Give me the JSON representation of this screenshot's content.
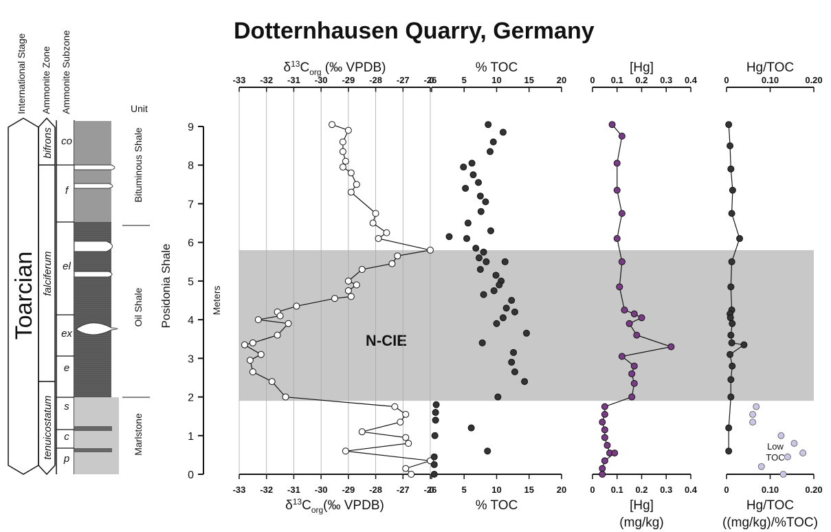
{
  "figure": {
    "title": "Dotternhausen Quarry, Germany",
    "column_headers": [
      "International Stage",
      "Ammonite Zone",
      "Ammonite Subzone"
    ],
    "unit_header": "Unit",
    "stage": "Toarcian",
    "zones": [
      "bifrons",
      "falciferum",
      "tenuicostatum"
    ],
    "subzones": [
      "co",
      "f",
      "el",
      "ex",
      "e",
      "s",
      "c",
      "p"
    ],
    "units": [
      "Bituminous Shale",
      "Oil Shale",
      "Marlstone"
    ],
    "formation_label": "Posidonia Shale",
    "meters_label": "Meters",
    "band_label": "N-CIE",
    "low_toc_label": [
      "Low",
      "TOC"
    ]
  },
  "chart_data": [
    {
      "type": "line",
      "title": "δ13Corg (‰ VPDB)",
      "top_label": [
        "δ",
        "13",
        "C",
        "org",
        " (‰ VPDB)"
      ],
      "bottom_label": [
        "δ",
        "13",
        "C",
        "org",
        "(‰ VPDB)"
      ],
      "xlim": [
        -33,
        -26
      ],
      "xticks": [
        "-33",
        "-32",
        "-31",
        "-30",
        "-29",
        "-28",
        "-27",
        "-26"
      ],
      "grid": true,
      "ylabel": "Meters",
      "ylim": [
        0,
        9
      ],
      "yticks": [
        "0",
        "1",
        "2",
        "3",
        "4",
        "5",
        "6",
        "7",
        "8",
        "9"
      ],
      "marker_color": "#ffffff",
      "series": [
        {
          "x": [
            -29.6,
            -29.0,
            -29.2,
            -29.2,
            -29.1,
            -29.2,
            -28.9,
            -28.7,
            -28.9,
            -28.0,
            -28.1,
            -27.6,
            -27.9,
            -26.0,
            -27.2,
            -27.4,
            -28.5,
            -29.0,
            -28.7,
            -29.0,
            -28.9,
            -29.5,
            -30.9,
            -31.6,
            -31.5,
            -32.3,
            -31.2,
            -31.6,
            -32.5,
            -32.8,
            -32.2,
            -32.6,
            -32.5,
            -31.8,
            -31.3,
            -27.3,
            -26.9,
            -27.1,
            -28.5,
            -26.9,
            -26.8,
            -29.1,
            -26.0,
            -26.9,
            -26.7
          ],
          "y": [
            9.05,
            8.9,
            8.6,
            8.35,
            8.1,
            7.95,
            7.8,
            7.5,
            7.3,
            6.75,
            6.5,
            6.25,
            6.1,
            5.8,
            5.65,
            5.45,
            5.3,
            5.0,
            4.9,
            4.75,
            4.6,
            4.55,
            4.35,
            4.2,
            4.1,
            4.0,
            3.9,
            3.6,
            3.4,
            3.35,
            3.1,
            2.95,
            2.65,
            2.4,
            2.0,
            1.75,
            1.55,
            1.35,
            1.1,
            0.95,
            0.8,
            0.6,
            0.35,
            0.15,
            0.0
          ]
        }
      ]
    },
    {
      "type": "scatter",
      "title": "% TOC",
      "xlim": [
        0,
        20
      ],
      "xticks": [
        "0",
        "5",
        "10",
        "15",
        "20"
      ],
      "marker_color": "#333333",
      "series": [
        {
          "x": [
            8.7,
            11.0,
            9.5,
            9.0,
            6.2,
            4.9,
            6.4,
            7.2,
            5.2,
            7.5,
            8.3,
            7.6,
            5.6,
            9.1,
            2.7,
            5.4,
            6.8,
            8.0,
            7.3,
            8.4,
            11.3,
            7.5,
            9.9,
            10.7,
            10.4,
            9.6,
            8.0,
            12.3,
            11.5,
            12.8,
            11.0,
            10.0,
            14.6,
            7.8,
            12.6,
            12.3,
            12.8,
            14.3,
            10.2,
            0.7,
            0.6,
            0.6,
            6.1,
            0.5,
            8.6,
            0.4,
            0.4,
            0.4
          ],
          "y": [
            9.05,
            8.85,
            8.6,
            8.35,
            8.05,
            7.95,
            7.75,
            7.55,
            7.4,
            7.2,
            7.05,
            6.8,
            6.5,
            6.3,
            6.15,
            6.1,
            5.85,
            5.75,
            5.6,
            5.5,
            5.5,
            5.3,
            5.15,
            5.0,
            4.9,
            4.75,
            4.65,
            4.5,
            4.3,
            4.2,
            4.05,
            3.9,
            3.65,
            3.4,
            3.15,
            2.9,
            2.65,
            2.4,
            2.0,
            1.8,
            1.6,
            1.4,
            1.2,
            1.0,
            0.6,
            0.45,
            0.25,
            0.0
          ]
        }
      ],
      "bottom_label": "% TOC"
    },
    {
      "type": "line",
      "title": "[Hg]",
      "xlim": [
        0,
        0.4
      ],
      "xticks": [
        "0",
        "0.1",
        "0.2",
        "0.3",
        "0.4"
      ],
      "marker_color": "#7a3b86",
      "series": [
        {
          "x": [
            0.08,
            0.12,
            0.1,
            0.1,
            0.12,
            0.1,
            0.12,
            0.11,
            0.13,
            0.17,
            0.2,
            0.15,
            0.18,
            0.32,
            0.12,
            0.17,
            0.16,
            0.17,
            0.16,
            0.05,
            0.05,
            0.04,
            0.05,
            0.05,
            0.06,
            0.07,
            0.09,
            0.05,
            0.04,
            0.04
          ],
          "y": [
            9.05,
            8.75,
            8.05,
            7.35,
            6.75,
            6.1,
            5.5,
            4.85,
            4.25,
            4.15,
            4.05,
            3.9,
            3.6,
            3.3,
            3.05,
            2.8,
            2.6,
            2.35,
            2.0,
            1.75,
            1.55,
            1.35,
            1.15,
            0.95,
            0.75,
            0.55,
            0.55,
            0.35,
            0.15,
            0.0
          ]
        }
      ],
      "bottom_label": [
        "[Hg]",
        "(mg/kg)"
      ]
    },
    {
      "type": "line",
      "title": "Hg/TOC",
      "xlim": [
        0,
        0.2
      ],
      "xticks": [
        "0",
        "0.10",
        "0.20"
      ],
      "marker_color": "#333333",
      "series": [
        {
          "x": [
            0.005,
            0.008,
            0.01,
            0.014,
            0.012,
            0.03,
            0.012,
            0.01,
            0.012,
            0.008,
            0.009,
            0.013,
            0.01,
            0.012,
            0.04,
            0.008,
            0.013,
            0.01,
            0.01,
            0.005,
            0.005
          ],
          "y": [
            9.05,
            8.5,
            7.9,
            7.35,
            6.75,
            6.1,
            5.5,
            4.85,
            4.25,
            4.15,
            4.05,
            3.9,
            3.6,
            3.4,
            3.35,
            3.1,
            2.8,
            2.45,
            2.0,
            1.2,
            0.6
          ]
        }
      ],
      "low_toc_points": {
        "color": "#c9c6e6",
        "x": [
          0.068,
          0.06,
          0.06,
          0.125,
          0.155,
          0.175,
          0.14,
          0.08,
          0.13
        ],
        "y": [
          1.75,
          1.55,
          1.35,
          1.0,
          0.8,
          0.55,
          0.45,
          0.2,
          0.0
        ]
      },
      "bottom_label": [
        "Hg/TOC",
        "((mg/kg)/%TOC)"
      ]
    }
  ],
  "band": {
    "y_range": [
      1.9,
      5.8
    ],
    "color": "#c8c8c8"
  }
}
